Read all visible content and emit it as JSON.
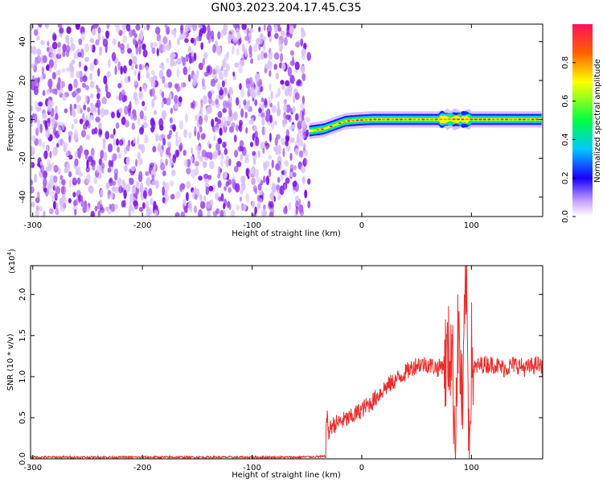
{
  "figure_title": "GN03.2023.204.17.45.C35",
  "colors": {
    "snr_line": "#e8302c",
    "noise_purple": "#7b1fe0",
    "colormap": [
      "#ffffff",
      "#8a2be2",
      "#1800ff",
      "#00c8ff",
      "#00ff40",
      "#ffff00",
      "#ff6000",
      "#ff1060"
    ]
  },
  "chart_data": [
    {
      "type": "heatmap",
      "title": "",
      "xlabel": "Height of straight line (km)",
      "ylabel": "Frequency (Hz)",
      "xlim": [
        -302,
        165
      ],
      "ylim": [
        -50,
        49
      ],
      "x_ticks": [
        "-300",
        "-200",
        "-100",
        "0",
        "100"
      ],
      "y_ticks": [
        "40",
        "20",
        "0",
        "-20",
        "-40"
      ],
      "colorbar": {
        "label": "Normalized spectral amplitude",
        "range": [
          0,
          1
        ],
        "ticks": [
          "0.0",
          "0.2",
          "0.4",
          "0.6",
          "0.8"
        ]
      },
      "regions": [
        {
          "name": "noise",
          "x_range": [
            -302,
            -48
          ]
        },
        {
          "name": "signal",
          "x_range": [
            -48,
            165
          ]
        }
      ],
      "signal_ridge": {
        "x": [
          -48,
          -35,
          -25,
          -15,
          -5,
          10,
          40,
          70,
          90,
          100,
          165
        ],
        "freq_hz": [
          -6,
          -5,
          -3,
          -1,
          -0.5,
          0,
          0,
          0,
          0,
          0,
          0
        ],
        "width_hz": 4
      }
    },
    {
      "type": "line",
      "title": "",
      "xlabel": "Height of straight line (km)",
      "ylabel": "SNR (10 * v/v)",
      "multiplier_label": "(x10",
      "multiplier_exp": "4",
      "multiplier_close": ")",
      "xlim": [
        -302,
        165
      ],
      "ylim": [
        0,
        2.35
      ],
      "x_ticks": [
        "-300",
        "-200",
        "-100",
        "0",
        "100"
      ],
      "y_ticks": [
        "2.0",
        "1.5",
        "1.0",
        "0.5",
        "0.0"
      ],
      "series": [
        {
          "x": [
            -302,
            -250,
            -200,
            -150,
            -100,
            -60,
            -33,
            -32,
            -30,
            -28,
            -20,
            -10,
            0,
            10,
            20,
            30,
            40,
            50,
            60,
            70,
            78,
            82,
            85,
            88,
            92,
            95,
            98,
            100,
            102,
            110,
            120,
            130,
            140,
            150,
            160,
            165
          ],
          "y": [
            0.02,
            0.02,
            0.02,
            0.02,
            0.02,
            0.02,
            0.03,
            0.55,
            0.3,
            0.4,
            0.45,
            0.5,
            0.6,
            0.7,
            0.85,
            0.95,
            1.05,
            1.15,
            1.15,
            1.1,
            1.2,
            1.4,
            0.3,
            1.6,
            0.5,
            2.3,
            0.2,
            1.3,
            1.1,
            1.15,
            1.15,
            1.1,
            1.15,
            1.1,
            1.15,
            1.1
          ]
        }
      ]
    }
  ]
}
